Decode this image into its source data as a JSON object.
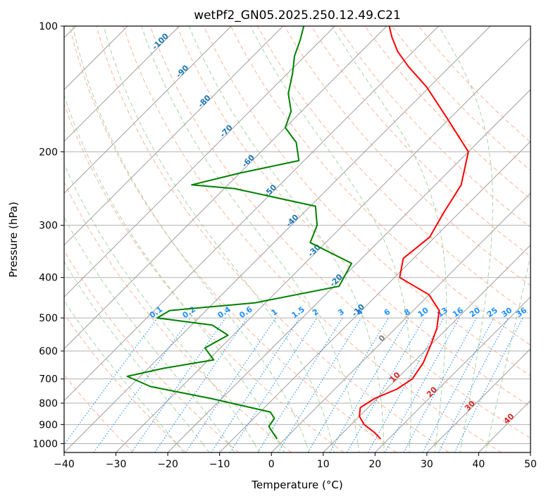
{
  "chart_data": {
    "type": "line",
    "title": "wetPf2_GN05.2025.250.12.49.C21",
    "xlabel": "Temperature (°C)",
    "ylabel": "Pressure (hPa)",
    "xlim": [
      -40,
      50
    ],
    "ylim": [
      1050,
      100
    ],
    "y_scale": "log",
    "skew": true,
    "grid": true,
    "x_ticks": [
      -40,
      -30,
      -20,
      -10,
      0,
      10,
      20,
      30,
      40,
      50
    ],
    "y_ticks": [
      100,
      200,
      300,
      400,
      500,
      600,
      700,
      800,
      900,
      1000
    ],
    "series": [
      {
        "role": "temperature",
        "color": "#ff0000",
        "points": [
          [
            18.5,
            975
          ],
          [
            16.0,
            940
          ],
          [
            12.5,
            900
          ],
          [
            10.0,
            860
          ],
          [
            8.5,
            820
          ],
          [
            9.5,
            780
          ],
          [
            12.0,
            740
          ],
          [
            13.0,
            700
          ],
          [
            12.0,
            640
          ],
          [
            10.0,
            580
          ],
          [
            8.0,
            530
          ],
          [
            5.0,
            480
          ],
          [
            0.0,
            440
          ],
          [
            -9.0,
            400
          ],
          [
            -12.0,
            360
          ],
          [
            -11.0,
            320
          ],
          [
            -13.0,
            280
          ],
          [
            -15.0,
            240
          ],
          [
            -20.0,
            200
          ],
          [
            -31.0,
            165
          ],
          [
            -40.5,
            140
          ],
          [
            -48.0,
            125
          ],
          [
            -53.0,
            115
          ],
          [
            -57.0,
            106
          ],
          [
            -59.5,
            100
          ]
        ]
      },
      {
        "role": "dewpoint",
        "color": "#008000",
        "points": [
          [
            -1.5,
            975
          ],
          [
            -3.0,
            950
          ],
          [
            -5.5,
            910
          ],
          [
            -6.0,
            870
          ],
          [
            -8.0,
            840
          ],
          [
            -22.0,
            780
          ],
          [
            -36.0,
            730
          ],
          [
            -42.5,
            690
          ],
          [
            -37.0,
            660
          ],
          [
            -29.0,
            630
          ],
          [
            -33.0,
            590
          ],
          [
            -31.0,
            550
          ],
          [
            -36.0,
            520
          ],
          [
            -48.0,
            500
          ],
          [
            -47.0,
            480
          ],
          [
            -32.0,
            460
          ],
          [
            -19.0,
            420
          ],
          [
            -21.0,
            370
          ],
          [
            -33.0,
            330
          ],
          [
            -35.0,
            300
          ],
          [
            -39.0,
            270
          ],
          [
            -58.0,
            245
          ],
          [
            -67.0,
            240
          ],
          [
            -60.0,
            225
          ],
          [
            -51.0,
            210
          ],
          [
            -55.0,
            190
          ],
          [
            -60.0,
            175
          ],
          [
            -62.0,
            160
          ],
          [
            -66.0,
            145
          ],
          [
            -69.0,
            130
          ],
          [
            -72.0,
            118
          ],
          [
            -74.0,
            108
          ],
          [
            -76.0,
            100
          ]
        ]
      }
    ],
    "dry_adiabat_labels": [
      "-100",
      "-90",
      "-80",
      "-70",
      "-60",
      "-50",
      "-40",
      "-30",
      "-20",
      "-10"
    ],
    "moist_adiabat_labels": [
      "0",
      "10",
      "20",
      "30",
      "40"
    ],
    "mixing_ratio_labels": [
      "0.1",
      "0.2",
      "0.4",
      "0.6",
      "1",
      "1.5",
      "2",
      "3",
      "4",
      "6",
      "8",
      "10",
      "13",
      "16",
      "20",
      "25",
      "30",
      "36"
    ],
    "colors": {
      "temperature": "#ff0000",
      "dewpoint": "#008000",
      "isotherm": "#9e9e9e",
      "isobar": "#b0b0b0",
      "dry_adiabat": "#ffa07a",
      "moist_adiabat": "#8fc98f",
      "mixing_ratio": "#1e90ff",
      "dry_label": "#1f77b4",
      "moist_label": "#d62728"
    }
  }
}
